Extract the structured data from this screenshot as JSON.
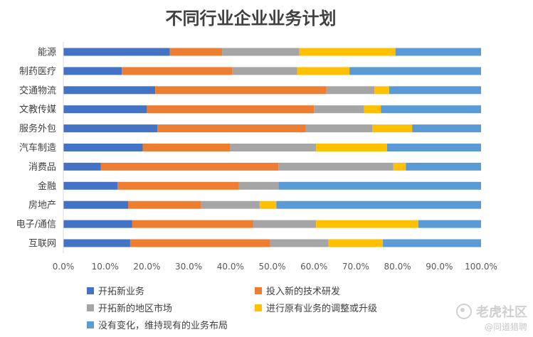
{
  "chart_data": {
    "type": "bar",
    "orientation": "horizontal",
    "stacked": "percent",
    "title": "不同行业企业业务计划",
    "categories": [
      "能源",
      "制药医疗",
      "交通物流",
      "文教传媒",
      "服务外包",
      "汽车制造",
      "消费品",
      "金融",
      "房地产",
      "电子/通信",
      "互联网"
    ],
    "series": [
      {
        "name": "开拓新业务",
        "color": "#4472C4",
        "values": [
          25.5,
          14.0,
          22.0,
          20.0,
          22.5,
          19.0,
          9.0,
          13.0,
          15.5,
          16.5,
          16.0
        ]
      },
      {
        "name": "投入新的技术研发",
        "color": "#ED7D31",
        "values": [
          12.5,
          26.5,
          41.0,
          40.0,
          35.5,
          21.0,
          42.5,
          29.0,
          17.5,
          29.0,
          33.5
        ]
      },
      {
        "name": "开拓新的地区市场",
        "color": "#A5A5A5",
        "values": [
          18.5,
          15.5,
          11.5,
          12.0,
          16.0,
          20.5,
          27.5,
          9.5,
          14.0,
          15.0,
          14.0
        ]
      },
      {
        "name": "进行原有业务的调整或升级",
        "color": "#FFC000",
        "values": [
          23.0,
          12.5,
          3.5,
          4.0,
          9.5,
          17.0,
          3.0,
          0.0,
          4.0,
          24.5,
          13.0
        ]
      },
      {
        "name": "没有变化，维持现有的业务布局",
        "color": "#5B9BD5",
        "values": [
          20.5,
          31.5,
          22.0,
          24.0,
          16.5,
          22.5,
          18.0,
          48.5,
          49.0,
          15.0,
          23.5
        ]
      }
    ],
    "x_ticks": [
      "0.0%",
      "10.0%",
      "20.0%",
      "30.0%",
      "40.0%",
      "50.0%",
      "60.0%",
      "70.0%",
      "80.0%",
      "90.0%",
      "100.0%"
    ],
    "xlim": [
      0,
      100
    ],
    "legend_position": "bottom",
    "grid": false
  },
  "watermark": {
    "main": "老虎社区",
    "sub": "@同道猎聘"
  }
}
